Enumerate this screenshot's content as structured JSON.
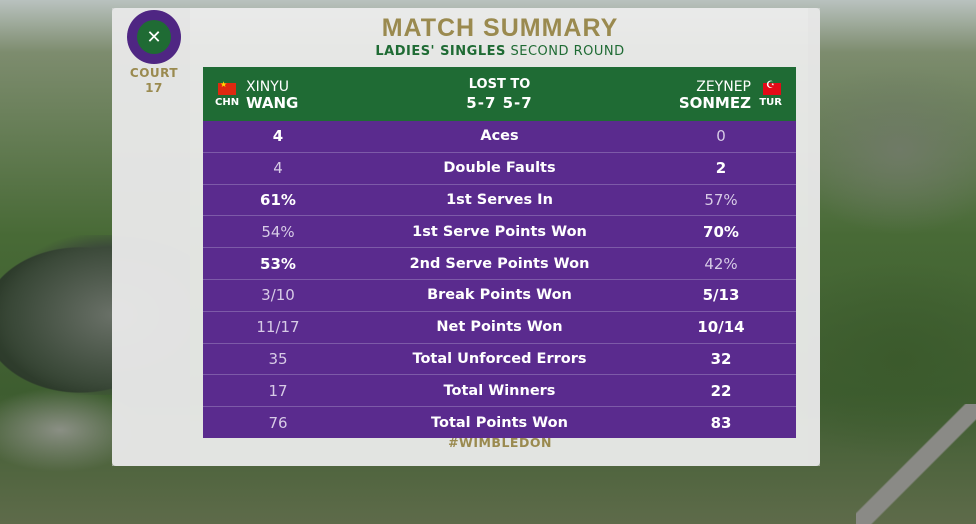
{
  "branding": {
    "logo_icon": "wimbledon-crossed-rackets-icon",
    "court_label": "COURT",
    "court_number": "17",
    "hashtag": "#WIMBLEDON"
  },
  "summary": {
    "title": "MATCH SUMMARY",
    "event_bold": "LADIES' SINGLES",
    "round": "SECOND ROUND"
  },
  "match": {
    "left_player": {
      "first": "XINYU",
      "last": "WANG",
      "country": "CHN",
      "flag_icon": "china-flag-icon"
    },
    "right_player": {
      "first": "ZEYNEP",
      "last": "SONMEZ",
      "country": "TUR",
      "flag_icon": "turkey-flag-icon"
    },
    "result_label": "LOST TO",
    "score": "5-7 5-7"
  },
  "stats": [
    {
      "label": "Aces",
      "left": "4",
      "right": "0",
      "lead": "left"
    },
    {
      "label": "Double Faults",
      "left": "4",
      "right": "2",
      "lead": "right"
    },
    {
      "label": "1st Serves In",
      "left": "61%",
      "right": "57%",
      "lead": "left"
    },
    {
      "label": "1st Serve Points Won",
      "left": "54%",
      "right": "70%",
      "lead": "right"
    },
    {
      "label": "2nd Serve Points Won",
      "left": "53%",
      "right": "42%",
      "lead": "left"
    },
    {
      "label": "Break Points Won",
      "left": "3/10",
      "right": "5/13",
      "lead": "right"
    },
    {
      "label": "Net Points Won",
      "left": "11/17",
      "right": "10/14",
      "lead": "right"
    },
    {
      "label": "Total Unforced Errors",
      "left": "35",
      "right": "32",
      "lead": "right"
    },
    {
      "label": "Total Winners",
      "left": "17",
      "right": "22",
      "lead": "right"
    },
    {
      "label": "Total Points Won",
      "left": "76",
      "right": "83",
      "lead": "right"
    }
  ],
  "colors": {
    "gold": "#9a8a4f",
    "green": "#1f6b34",
    "purple": "#5a2b8e"
  }
}
